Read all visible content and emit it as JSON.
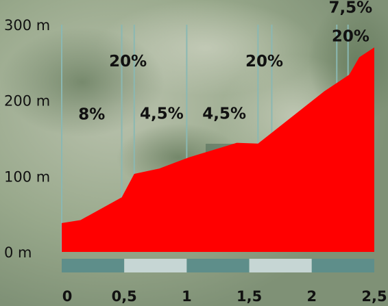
{
  "chart_data": {
    "type": "area",
    "title": "",
    "xlabel": "",
    "ylabel": "",
    "x_unit": "km",
    "y_unit": "m",
    "xlim": [
      0,
      2.5
    ],
    "ylim": [
      0,
      300
    ],
    "grid": "vertical lines at gradient changes",
    "fill_color": "#ff0000",
    "y_ticks": [
      {
        "value": 0,
        "label": "0 m"
      },
      {
        "value": 100,
        "label": "100 m"
      },
      {
        "value": 200,
        "label": "200 m"
      },
      {
        "value": 300,
        "label": "300 m"
      }
    ],
    "x_ticks": [
      {
        "value": 0,
        "label": "0"
      },
      {
        "value": 0.5,
        "label": "0,5"
      },
      {
        "value": 1,
        "label": "1"
      },
      {
        "value": 1.5,
        "label": "1,5"
      },
      {
        "value": 2,
        "label": "2"
      },
      {
        "value": 2.5,
        "label": "2,5"
      }
    ],
    "profile": [
      {
        "x": 0.0,
        "y": 38
      },
      {
        "x": 0.15,
        "y": 42
      },
      {
        "x": 0.48,
        "y": 72
      },
      {
        "x": 0.58,
        "y": 103
      },
      {
        "x": 0.78,
        "y": 110
      },
      {
        "x": 1.02,
        "y": 125
      },
      {
        "x": 1.4,
        "y": 144
      },
      {
        "x": 1.57,
        "y": 143
      },
      {
        "x": 2.1,
        "y": 212
      },
      {
        "x": 2.3,
        "y": 234
      },
      {
        "x": 2.38,
        "y": 257
      },
      {
        "x": 2.5,
        "y": 270
      }
    ],
    "gradient_dividers": [
      0.48,
      0.58,
      1.0,
      1.57,
      1.68,
      2.2,
      2.29
    ],
    "gradient_labels": [
      {
        "text": "8%",
        "x": 0.24,
        "y": 182
      },
      {
        "text": "20%",
        "x": 0.53,
        "y": 252
      },
      {
        "text": "4,5%",
        "x": 0.8,
        "y": 183
      },
      {
        "text": "4,5%",
        "x": 1.3,
        "y": 183
      },
      {
        "text": "20%",
        "x": 1.62,
        "y": 252
      },
      {
        "text": "20%",
        "x": 2.31,
        "y": 285
      },
      {
        "text": "7,5%",
        "x": 2.31,
        "y": 323
      }
    ],
    "scale_bar": {
      "segment_km": 0.5,
      "colors": [
        "#5e8e8a",
        "#c6d6d4"
      ]
    }
  }
}
